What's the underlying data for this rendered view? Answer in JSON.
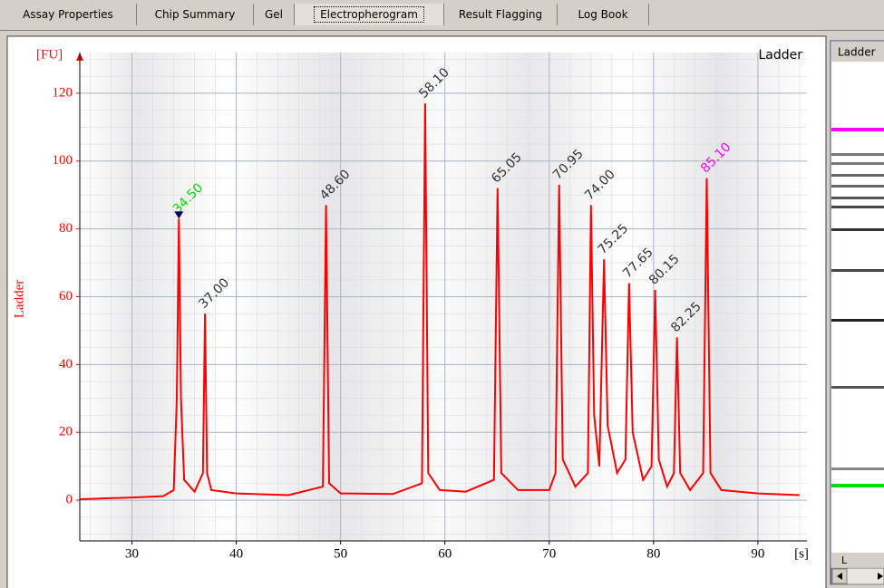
{
  "tabs": [
    "Assay Properties",
    "Chip Summary",
    "Gel",
    "Electropherogram",
    "Result Flagging",
    "Log Book"
  ],
  "gel": {
    "header": "Ladder",
    "footer": "L"
  },
  "chart_data": {
    "type": "line",
    "title": "Ladder",
    "y_label": "Ladder",
    "y_unit": "[FU]",
    "x_unit": "[s]",
    "xlim": [
      25,
      94.7
    ],
    "ylim": [
      -12,
      132
    ],
    "xticks": [
      30,
      40,
      50,
      60,
      70,
      80,
      90
    ],
    "yticks": [
      0,
      20,
      40,
      60,
      80,
      100,
      120
    ],
    "grid": true,
    "series": [
      {
        "name": "Ladder",
        "color": "#ff0000",
        "x": [
          25,
          30,
          33,
          34.0,
          34.3,
          34.5,
          34.7,
          35.0,
          36.0,
          36.8,
          37.0,
          37.2,
          37.6,
          40,
          45,
          48.3,
          48.6,
          48.9,
          50,
          55,
          57.8,
          58.1,
          58.4,
          59.5,
          62,
          64.7,
          65.05,
          65.4,
          67,
          70,
          70.6,
          70.95,
          71.3,
          72.5,
          73.7,
          74.0,
          74.3,
          74.8,
          75.25,
          75.6,
          76.5,
          77.3,
          77.65,
          78.0,
          79.0,
          79.8,
          80.15,
          80.5,
          81.3,
          81.95,
          82.25,
          82.55,
          83.5,
          84.75,
          85.1,
          85.45,
          86.5,
          90,
          94
        ],
        "values": [
          0.3,
          0.8,
          1.2,
          3,
          30,
          83,
          30,
          6,
          2.5,
          8,
          55,
          8,
          3,
          2,
          1.5,
          4,
          87,
          5,
          2,
          1.8,
          5,
          117,
          8,
          3,
          2.5,
          6,
          92,
          8,
          3,
          3,
          8,
          93,
          12,
          4,
          8,
          87,
          25,
          10,
          71,
          22,
          8,
          12,
          64,
          20,
          6,
          10,
          62,
          12,
          4,
          8,
          48,
          8,
          3,
          8,
          95,
          8,
          3,
          2,
          1.5
        ]
      }
    ],
    "annotations": [
      {
        "text": "34.50",
        "x": 34.5,
        "y": 83,
        "color": "#00dd00"
      },
      {
        "text": "37.00",
        "x": 37.0,
        "y": 55,
        "color": "#333333"
      },
      {
        "text": "48.60",
        "x": 48.6,
        "y": 87,
        "color": "#333333"
      },
      {
        "text": "58.10",
        "x": 58.1,
        "y": 117,
        "color": "#333333"
      },
      {
        "text": "65.05",
        "x": 65.05,
        "y": 92,
        "color": "#333333"
      },
      {
        "text": "70.95",
        "x": 70.95,
        "y": 93,
        "color": "#333333"
      },
      {
        "text": "74.00",
        "x": 74.0,
        "y": 87,
        "color": "#333333"
      },
      {
        "text": "75.25",
        "x": 75.25,
        "y": 71,
        "color": "#333333"
      },
      {
        "text": "77.65",
        "x": 77.65,
        "y": 64,
        "color": "#333333"
      },
      {
        "text": "80.15",
        "x": 80.15,
        "y": 62,
        "color": "#333333"
      },
      {
        "text": "82.25",
        "x": 82.25,
        "y": 48,
        "color": "#333333"
      },
      {
        "text": "85.10",
        "x": 85.1,
        "y": 95,
        "color": "#ff00ff"
      }
    ]
  }
}
